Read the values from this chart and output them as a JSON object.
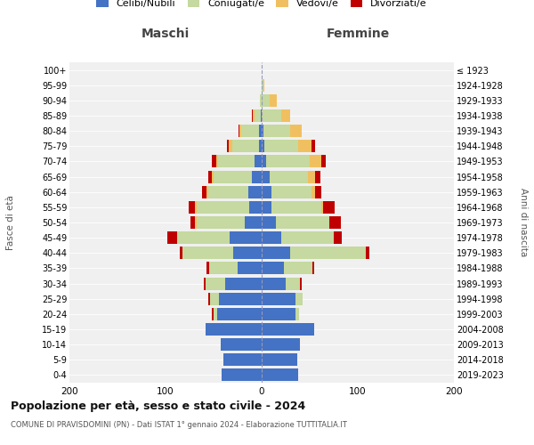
{
  "age_groups": [
    "0-4",
    "5-9",
    "10-14",
    "15-19",
    "20-24",
    "25-29",
    "30-34",
    "35-39",
    "40-44",
    "45-49",
    "50-54",
    "55-59",
    "60-64",
    "65-69",
    "70-74",
    "75-79",
    "80-84",
    "85-89",
    "90-94",
    "95-99",
    "100+"
  ],
  "birth_years": [
    "2019-2023",
    "2014-2018",
    "2009-2013",
    "2004-2008",
    "1999-2003",
    "1994-1998",
    "1989-1993",
    "1984-1988",
    "1979-1983",
    "1974-1978",
    "1969-1973",
    "1964-1968",
    "1959-1963",
    "1954-1958",
    "1949-1953",
    "1944-1948",
    "1939-1943",
    "1934-1938",
    "1929-1933",
    "1924-1928",
    "≤ 1923"
  ],
  "colors": {
    "celibi": "#4472c4",
    "coniugati": "#c5d9a0",
    "vedovi": "#f0c060",
    "divorziati": "#c00000"
  },
  "maschi": {
    "celibi": [
      42,
      40,
      43,
      58,
      46,
      44,
      38,
      25,
      30,
      33,
      18,
      13,
      14,
      10,
      7,
      3,
      3,
      1,
      0,
      0,
      0
    ],
    "coniugati": [
      0,
      0,
      0,
      0,
      4,
      10,
      20,
      30,
      52,
      55,
      50,
      55,
      42,
      40,
      38,
      28,
      18,
      6,
      2,
      0,
      0
    ],
    "vedovi": [
      0,
      0,
      0,
      0,
      0,
      0,
      0,
      0,
      0,
      0,
      1,
      1,
      1,
      2,
      2,
      3,
      2,
      2,
      0,
      0,
      0
    ],
    "divorziati": [
      0,
      0,
      0,
      0,
      2,
      2,
      2,
      2,
      3,
      10,
      5,
      7,
      5,
      4,
      5,
      2,
      1,
      1,
      0,
      0,
      0
    ]
  },
  "femmine": {
    "nubili": [
      38,
      37,
      40,
      55,
      35,
      35,
      25,
      23,
      30,
      20,
      15,
      10,
      10,
      8,
      5,
      3,
      2,
      0,
      0,
      0,
      0
    ],
    "coniugate": [
      0,
      0,
      0,
      0,
      4,
      8,
      15,
      30,
      78,
      55,
      55,
      52,
      42,
      40,
      45,
      35,
      28,
      20,
      8,
      2,
      0
    ],
    "vedove": [
      0,
      0,
      0,
      0,
      0,
      0,
      0,
      0,
      0,
      0,
      0,
      2,
      4,
      8,
      12,
      14,
      12,
      10,
      8,
      1,
      0
    ],
    "divorziate": [
      0,
      0,
      0,
      0,
      0,
      0,
      2,
      2,
      4,
      8,
      12,
      12,
      6,
      5,
      5,
      4,
      0,
      0,
      0,
      0,
      0
    ]
  },
  "title": "Popolazione per età, sesso e stato civile - 2024",
  "subtitle": "COMUNE DI PRAVISDOMINI (PN) - Dati ISTAT 1° gennaio 2024 - Elaborazione TUTTITALIA.IT",
  "ylabel_left": "Maschi",
  "ylabel_right": "Femmine",
  "xlabel_left": "Fasce di età",
  "xlabel_right": "Anni di nascita",
  "xlim": 200,
  "legend_labels": [
    "Celibi/Nubili",
    "Coniugati/e",
    "Vedovi/e",
    "Divorziati/e"
  ],
  "background_color": "#ffffff",
  "bg_plot": "#f0f0f0"
}
